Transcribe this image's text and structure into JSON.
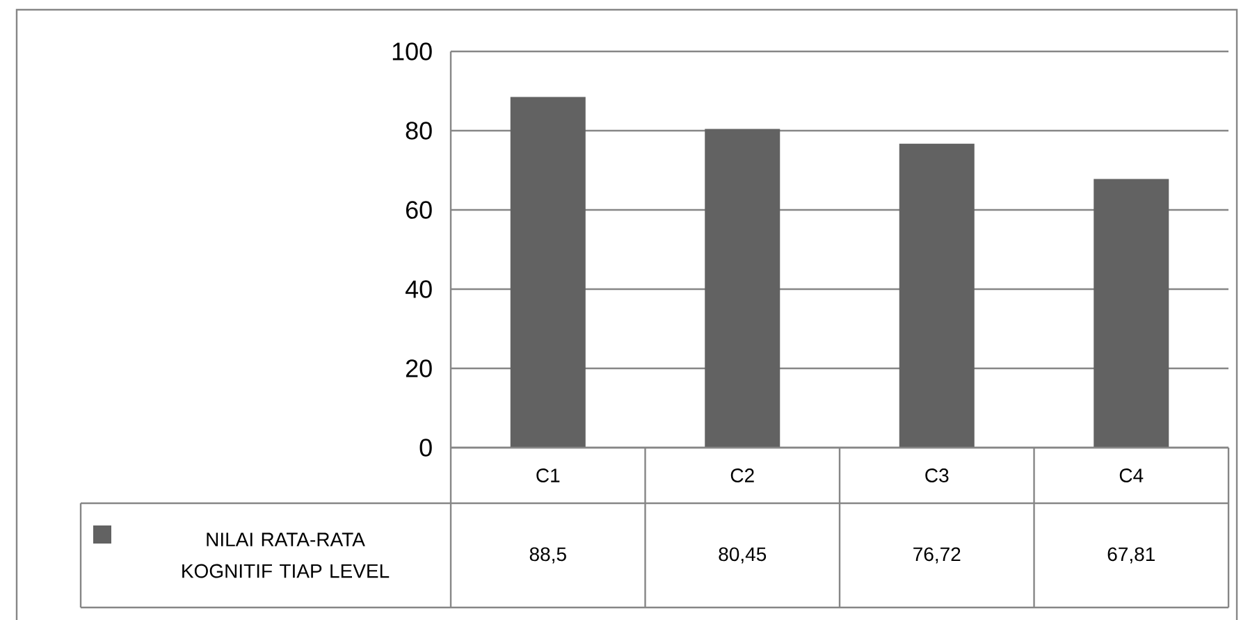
{
  "chart_data": {
    "type": "bar",
    "categories": [
      "C1",
      "C2",
      "C3",
      "C4"
    ],
    "series": [
      {
        "name": "NILAI RATA-RATA KOGNITIF TIAP LEVEL",
        "color": "#626262",
        "values": [
          88.5,
          80.45,
          76.72,
          67.81
        ],
        "value_labels": [
          "88,5",
          "80,45",
          "76,72",
          "67,81"
        ]
      }
    ],
    "ylim": [
      0,
      100
    ],
    "yticks": [
      0,
      20,
      40,
      60,
      80,
      100
    ],
    "grid": "y",
    "legend": "bottom"
  }
}
